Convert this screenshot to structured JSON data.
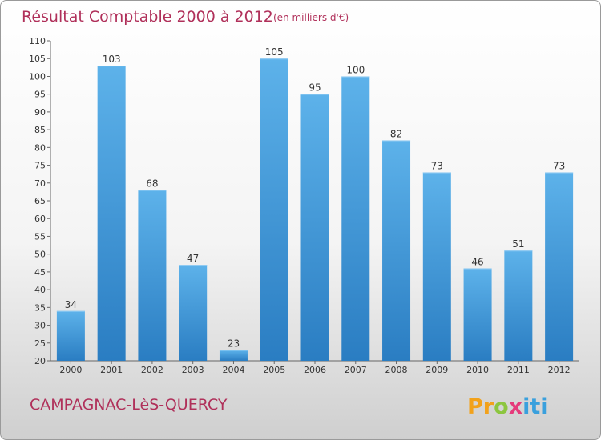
{
  "header": {
    "title": "Résultat Comptable 2000 à 2012",
    "unit": "(en milliers d'€)"
  },
  "footer": {
    "commune": "CAMPAGNAC-LèS-QUERCY",
    "logo_text": "Proxiti",
    "logo_letters": [
      "P",
      "r",
      "o",
      "x",
      "i",
      "t",
      "i"
    ],
    "logo_colors": [
      "#f2a21b",
      "#f2a21b",
      "#8cc63f",
      "#e53b7b",
      "#3aa0dd",
      "#3aa0dd",
      "#3aa0dd"
    ]
  },
  "colors": {
    "bar_light": "#5db2ea",
    "bar_dark": "#2a7dc2",
    "axis": "#666666",
    "title": "#b0305a"
  },
  "chart_data": {
    "type": "bar",
    "categories": [
      "2000",
      "2001",
      "2002",
      "2003",
      "2004",
      "2005",
      "2006",
      "2007",
      "2008",
      "2009",
      "2010",
      "2011",
      "2012"
    ],
    "values": [
      34,
      103,
      68,
      47,
      23,
      105,
      95,
      100,
      82,
      73,
      46,
      51,
      73
    ],
    "ylim": [
      20,
      110
    ],
    "yticks": [
      20,
      25,
      30,
      35,
      40,
      45,
      50,
      55,
      60,
      65,
      70,
      75,
      80,
      85,
      90,
      95,
      100,
      105,
      110
    ],
    "grid": false,
    "legend": "none"
  }
}
